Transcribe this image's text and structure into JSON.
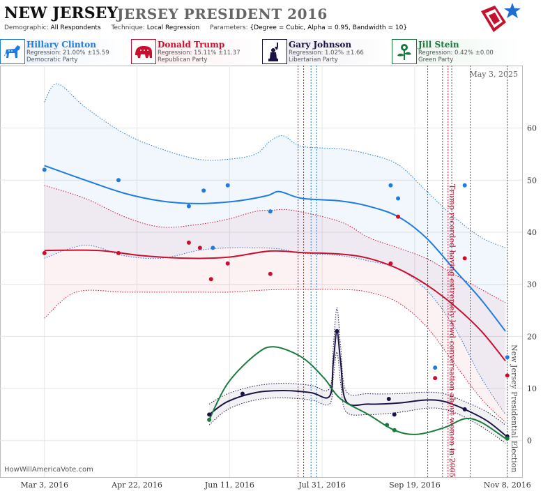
{
  "header": {
    "state": "NEW JERSEY",
    "race": "JERSEY PRESIDENT 2016",
    "demographic_label": "Demographic:",
    "demographic_value": "All Respondents",
    "technique_label": "Technique:",
    "technique_value": "Local Regression",
    "parameters_label": "Parameters:",
    "parameters_value": "{Degree = Cubic, Alpha = 0.95, Bandwidth = 10}"
  },
  "logo": {
    "icon": "star-flag-logo-icon",
    "colors": {
      "red": "#c8102e",
      "blue": "#1f6fd1"
    }
  },
  "candidates": [
    {
      "name": "Hillary Clinton",
      "regression": "Regression: 21.00% ±15.59",
      "party": "Democratic Party",
      "color": "#1e7be0",
      "icon": "donkey-icon"
    },
    {
      "name": "Donald Trump",
      "regression": "Regression: 15.11% ±11.37",
      "party": "Republican Party",
      "color": "#c8102e",
      "icon": "elephant-icon"
    },
    {
      "name": "Gary Johnson",
      "regression": "Regression: 1.02% ±1.66",
      "party": "Libertarian Party",
      "color": "#1a1446",
      "icon": "liberty-statue-icon"
    },
    {
      "name": "Jill Stein",
      "regression": "Regression: 0.42% ±0.00",
      "party": "Green Party",
      "color": "#1a7a3c",
      "icon": "rose-flower-icon"
    }
  ],
  "date_stamp": "May 3, 2025",
  "source": "HowWillAmericaVote.com",
  "chart_data": {
    "type": "line",
    "x_axis": {
      "type": "date",
      "min": "2016-02-08",
      "max": "2016-11-16",
      "ticks": [
        "Mar 3, 2016",
        "Apr 22, 2016",
        "Jun 11, 2016",
        "Jul 31, 2016",
        "Sep 19, 2016",
        "Nov 8, 2016"
      ],
      "tick_dates": [
        "2016-03-03",
        "2016-04-22",
        "2016-06-11",
        "2016-07-31",
        "2016-09-19",
        "2016-11-08"
      ]
    },
    "y_axis": {
      "min": -7,
      "max": 72,
      "ticks": [
        0,
        10,
        20,
        30,
        40,
        50,
        60
      ],
      "position": "right"
    },
    "grid": true,
    "annotations": [
      {
        "date": "2016-10-07",
        "text": "Trump recorded having extremely lewd conversation about women in 2005",
        "color": "#c8102e"
      },
      {
        "date": "2016-11-08",
        "text": "New Jersey Presidential Election",
        "color": "#555555"
      }
    ],
    "event_lines": [
      {
        "date": "2016-07-18",
        "color": "#c8102e"
      },
      {
        "date": "2016-07-21",
        "color": "#c8102e"
      },
      {
        "date": "2016-07-25",
        "color": "#1e7be0"
      },
      {
        "date": "2016-07-28",
        "color": "#1e7be0"
      },
      {
        "date": "2016-09-26",
        "color": "#555555"
      },
      {
        "date": "2016-10-04",
        "color": "#555555"
      },
      {
        "date": "2016-10-09",
        "color": "#555555"
      },
      {
        "date": "2016-10-19",
        "color": "#555555"
      }
    ],
    "series": [
      {
        "name": "Hillary Clinton",
        "color": "#1e7be0",
        "points": [
          [
            "2016-03-03",
            52
          ],
          [
            "2016-04-12",
            50
          ],
          [
            "2016-05-20",
            45
          ],
          [
            "2016-05-28",
            48
          ],
          [
            "2016-06-02",
            37
          ],
          [
            "2016-06-10",
            49
          ],
          [
            "2016-07-03",
            44
          ],
          [
            "2016-09-06",
            49
          ],
          [
            "2016-09-10",
            46.5
          ],
          [
            "2016-09-30",
            14
          ],
          [
            "2016-10-16",
            49
          ],
          [
            "2016-11-08",
            16
          ]
        ],
        "trend": [
          [
            "2016-03-03",
            52.8
          ],
          [
            "2016-03-25",
            50
          ],
          [
            "2016-04-15",
            47.5
          ],
          [
            "2016-05-05",
            46
          ],
          [
            "2016-05-25",
            45.5
          ],
          [
            "2016-06-15",
            46
          ],
          [
            "2016-07-01",
            47
          ],
          [
            "2016-07-08",
            47.8
          ],
          [
            "2016-07-20",
            46.5
          ],
          [
            "2016-08-10",
            46
          ],
          [
            "2016-08-25",
            45
          ],
          [
            "2016-09-10",
            43
          ],
          [
            "2016-09-25",
            39
          ],
          [
            "2016-10-10",
            33
          ],
          [
            "2016-10-25",
            27
          ],
          [
            "2016-11-07",
            21
          ]
        ],
        "upper": [
          [
            "2016-03-03",
            65
          ],
          [
            "2016-03-10",
            68.5
          ],
          [
            "2016-03-25",
            64
          ],
          [
            "2016-04-15",
            59
          ],
          [
            "2016-05-05",
            56
          ],
          [
            "2016-05-25",
            54
          ],
          [
            "2016-06-10",
            54
          ],
          [
            "2016-06-25",
            55
          ],
          [
            "2016-07-03",
            57.5
          ],
          [
            "2016-07-10",
            58.5
          ],
          [
            "2016-07-20",
            56.5
          ],
          [
            "2016-08-10",
            56
          ],
          [
            "2016-08-25",
            55
          ],
          [
            "2016-09-10",
            53
          ],
          [
            "2016-09-25",
            48
          ],
          [
            "2016-10-10",
            43
          ],
          [
            "2016-10-25",
            39
          ],
          [
            "2016-11-07",
            37
          ]
        ],
        "lower": [
          [
            "2016-03-03",
            35
          ],
          [
            "2016-03-25",
            37.5
          ],
          [
            "2016-04-15",
            35.5
          ],
          [
            "2016-05-05",
            35
          ],
          [
            "2016-05-25",
            36.5
          ],
          [
            "2016-06-10",
            37
          ],
          [
            "2016-06-25",
            37
          ],
          [
            "2016-07-08",
            36.8
          ],
          [
            "2016-07-20",
            36
          ],
          [
            "2016-08-10",
            35.5
          ],
          [
            "2016-08-25",
            34.5
          ],
          [
            "2016-09-10",
            33
          ],
          [
            "2016-09-25",
            29
          ],
          [
            "2016-10-10",
            22
          ],
          [
            "2016-10-25",
            12
          ],
          [
            "2016-11-07",
            5
          ]
        ]
      },
      {
        "name": "Donald Trump",
        "color": "#c8102e",
        "points": [
          [
            "2016-03-03",
            36
          ],
          [
            "2016-04-12",
            36
          ],
          [
            "2016-05-20",
            38
          ],
          [
            "2016-05-26",
            37
          ],
          [
            "2016-06-01",
            31
          ],
          [
            "2016-06-10",
            34
          ],
          [
            "2016-07-03",
            32
          ],
          [
            "2016-09-06",
            34
          ],
          [
            "2016-09-10",
            43
          ],
          [
            "2016-09-30",
            12
          ],
          [
            "2016-10-16",
            35
          ],
          [
            "2016-11-08",
            12.5
          ]
        ],
        "trend": [
          [
            "2016-03-03",
            36.5
          ],
          [
            "2016-04-01",
            36.5
          ],
          [
            "2016-04-25",
            35.5
          ],
          [
            "2016-05-20",
            35
          ],
          [
            "2016-06-10",
            35.2
          ],
          [
            "2016-07-03",
            36.4
          ],
          [
            "2016-07-20",
            36.1
          ],
          [
            "2016-08-10",
            35.8
          ],
          [
            "2016-08-25",
            35
          ],
          [
            "2016-09-10",
            33
          ],
          [
            "2016-09-25",
            30
          ],
          [
            "2016-10-10",
            26
          ],
          [
            "2016-10-25",
            21
          ],
          [
            "2016-11-07",
            15.3
          ]
        ],
        "upper": [
          [
            "2016-03-03",
            49
          ],
          [
            "2016-03-25",
            46.5
          ],
          [
            "2016-04-15",
            43
          ],
          [
            "2016-05-05",
            41
          ],
          [
            "2016-05-25",
            41.5
          ],
          [
            "2016-06-10",
            42.5
          ],
          [
            "2016-06-25",
            44
          ],
          [
            "2016-07-03",
            44.2
          ],
          [
            "2016-07-15",
            44.2
          ],
          [
            "2016-08-10",
            42
          ],
          [
            "2016-08-25",
            39
          ],
          [
            "2016-09-10",
            37
          ],
          [
            "2016-09-25",
            35
          ],
          [
            "2016-10-10",
            32
          ],
          [
            "2016-10-25",
            29
          ],
          [
            "2016-11-07",
            26.5
          ]
        ],
        "lower": [
          [
            "2016-03-03",
            23.5
          ],
          [
            "2016-03-20",
            28.5
          ],
          [
            "2016-04-15",
            28.5
          ],
          [
            "2016-05-05",
            28.5
          ],
          [
            "2016-05-25",
            28.5
          ],
          [
            "2016-06-10",
            28.5
          ],
          [
            "2016-06-25",
            28.8
          ],
          [
            "2016-07-10",
            29
          ],
          [
            "2016-08-10",
            29
          ],
          [
            "2016-08-25",
            28.5
          ],
          [
            "2016-09-10",
            26.5
          ],
          [
            "2016-09-25",
            22
          ],
          [
            "2016-10-10",
            15
          ],
          [
            "2016-10-25",
            8
          ],
          [
            "2016-11-07",
            3.5
          ]
        ]
      },
      {
        "name": "Gary Johnson",
        "color": "#1a1446",
        "points": [
          [
            "2016-05-31",
            5
          ],
          [
            "2016-06-18",
            9
          ],
          [
            "2016-08-08",
            21
          ],
          [
            "2016-09-05",
            8
          ],
          [
            "2016-09-08",
            5
          ],
          [
            "2016-10-16",
            6
          ],
          [
            "2016-11-08",
            0.8
          ]
        ],
        "trend": [
          [
            "2016-05-31",
            5
          ],
          [
            "2016-06-10",
            7.5
          ],
          [
            "2016-06-25",
            9.2
          ],
          [
            "2016-07-10",
            9.6
          ],
          [
            "2016-07-25",
            9.2
          ],
          [
            "2016-08-04",
            8.5
          ],
          [
            "2016-08-06",
            15
          ],
          [
            "2016-08-08",
            21
          ],
          [
            "2016-08-10",
            15
          ],
          [
            "2016-08-13",
            7.5
          ],
          [
            "2016-08-25",
            7
          ],
          [
            "2016-09-10",
            7.2
          ],
          [
            "2016-09-25",
            7.8
          ],
          [
            "2016-10-05",
            7.5
          ],
          [
            "2016-10-16",
            6
          ],
          [
            "2016-10-28",
            3.8
          ],
          [
            "2016-11-07",
            1
          ]
        ],
        "upper": [
          [
            "2016-05-31",
            7
          ],
          [
            "2016-06-10",
            9
          ],
          [
            "2016-06-25",
            10.5
          ],
          [
            "2016-07-10",
            11
          ],
          [
            "2016-07-25",
            10.6
          ],
          [
            "2016-08-04",
            10
          ],
          [
            "2016-08-06",
            18
          ],
          [
            "2016-08-08",
            25.5
          ],
          [
            "2016-08-10",
            18
          ],
          [
            "2016-08-13",
            9.5
          ],
          [
            "2016-08-25",
            9
          ],
          [
            "2016-09-10",
            9
          ],
          [
            "2016-09-25",
            9.3
          ],
          [
            "2016-10-05",
            9
          ],
          [
            "2016-10-16",
            7.5
          ],
          [
            "2016-10-28",
            5.5
          ],
          [
            "2016-11-07",
            3
          ]
        ],
        "lower": [
          [
            "2016-05-31",
            3
          ],
          [
            "2016-06-10",
            6
          ],
          [
            "2016-06-25",
            7.8
          ],
          [
            "2016-07-10",
            8.2
          ],
          [
            "2016-07-25",
            7.8
          ],
          [
            "2016-08-04",
            7
          ],
          [
            "2016-08-06",
            12
          ],
          [
            "2016-08-08",
            17
          ],
          [
            "2016-08-10",
            11
          ],
          [
            "2016-08-13",
            5.5
          ],
          [
            "2016-08-25",
            5
          ],
          [
            "2016-09-10",
            5.4
          ],
          [
            "2016-09-25",
            6.2
          ],
          [
            "2016-10-05",
            6
          ],
          [
            "2016-10-16",
            4.5
          ],
          [
            "2016-10-28",
            2
          ],
          [
            "2016-11-07",
            -0.5
          ]
        ]
      },
      {
        "name": "Jill Stein",
        "color": "#1a7a3c",
        "points": [
          [
            "2016-05-31",
            4
          ],
          [
            "2016-09-04",
            3
          ],
          [
            "2016-09-08",
            2
          ],
          [
            "2016-11-08",
            0.4
          ]
        ],
        "trend": [
          [
            "2016-05-31",
            4
          ],
          [
            "2016-06-10",
            11
          ],
          [
            "2016-06-25",
            16.5
          ],
          [
            "2016-07-05",
            18
          ],
          [
            "2016-07-20",
            16
          ],
          [
            "2016-08-01",
            12
          ],
          [
            "2016-08-10",
            8
          ],
          [
            "2016-08-25",
            5
          ],
          [
            "2016-09-08",
            2
          ],
          [
            "2016-09-20",
            1.2
          ],
          [
            "2016-10-05",
            2.5
          ],
          [
            "2016-10-16",
            4.2
          ],
          [
            "2016-10-25",
            3.5
          ],
          [
            "2016-11-07",
            0.4
          ]
        ]
      }
    ]
  }
}
